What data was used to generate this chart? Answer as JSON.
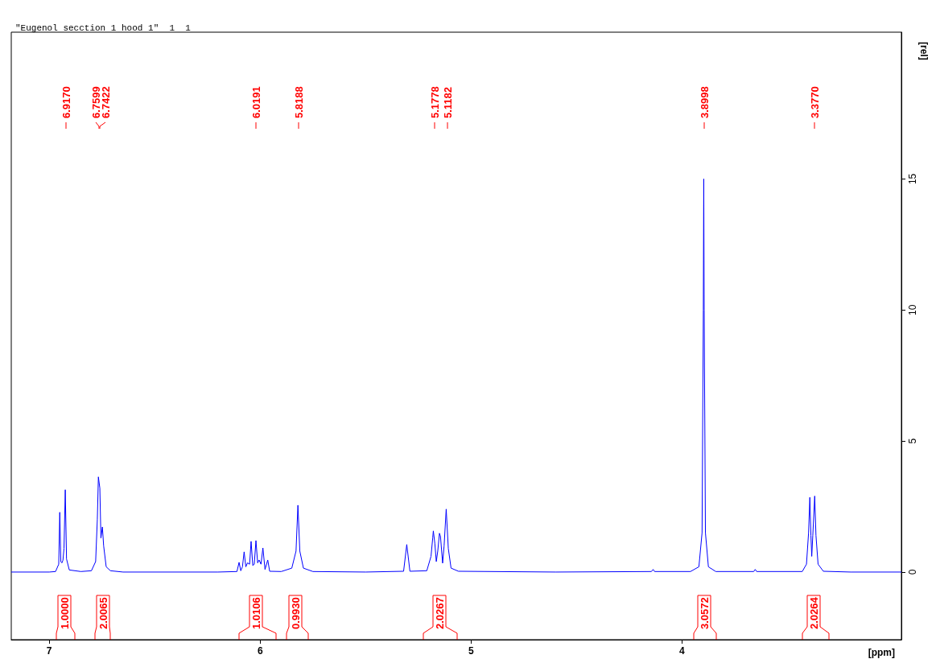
{
  "chart_data": {
    "type": "line",
    "title": "\"Eugenol secction 1 hood 1\"  1  1",
    "xlabel": "[ppm]",
    "ylabel": "[rel]",
    "xlim": [
      7.18,
      2.96
    ],
    "xticks": [
      7,
      6,
      5,
      4
    ],
    "ylim": [
      -2.58,
      20.6
    ],
    "yticks": [
      0,
      5,
      10,
      15
    ],
    "grid": false,
    "marker": "none",
    "line_style": "solid",
    "series": [
      {
        "color": "#0000ff",
        "x": [
          7.18,
          7.0,
          6.97,
          6.955,
          6.95,
          6.945,
          6.94,
          6.935,
          6.93,
          6.924,
          6.918,
          6.905,
          6.85,
          6.8,
          6.78,
          6.772,
          6.767,
          6.76,
          6.755,
          6.748,
          6.742,
          6.73,
          6.71,
          6.65,
          6.2,
          6.11,
          6.1,
          6.092,
          6.084,
          6.076,
          6.068,
          6.06,
          6.05,
          6.043,
          6.035,
          6.028,
          6.02,
          6.012,
          6.005,
          5.996,
          5.987,
          5.977,
          5.964,
          5.955,
          5.9,
          5.85,
          5.83,
          5.821,
          5.812,
          5.795,
          5.75,
          5.5,
          5.32,
          5.305,
          5.29,
          5.21,
          5.19,
          5.182,
          5.179,
          5.172,
          5.165,
          5.158,
          5.15,
          5.145,
          5.135,
          5.128,
          5.118,
          5.108,
          5.095,
          5.06,
          4.6,
          4.145,
          4.137,
          4.13,
          3.96,
          3.92,
          3.905,
          3.899,
          3.897,
          3.895,
          3.889,
          3.875,
          3.84,
          3.66,
          3.653,
          3.646,
          3.43,
          3.41,
          3.4,
          3.394,
          3.389,
          3.385,
          3.38,
          3.371,
          3.365,
          3.355,
          3.33,
          3.2,
          2.96
        ],
        "values": [
          0,
          0,
          0.02,
          0.3,
          2.28,
          0.4,
          0.35,
          0.45,
          0.9,
          3.14,
          0.5,
          0.08,
          0.02,
          0.05,
          0.4,
          2.0,
          3.63,
          3.2,
          1.3,
          1.72,
          1.0,
          0.2,
          0.05,
          0,
          0,
          0.02,
          0.37,
          0.05,
          0.2,
          0.77,
          0.2,
          0.35,
          0.3,
          1.17,
          0.25,
          0.3,
          1.2,
          0.35,
          0.46,
          0.3,
          0.92,
          0.1,
          0.46,
          0.03,
          0.02,
          0.15,
          0.8,
          2.55,
          0.8,
          0.15,
          0.02,
          0,
          0.03,
          1.05,
          0.03,
          0.05,
          0.6,
          1.3,
          1.57,
          1.1,
          0.4,
          0.8,
          1.48,
          1.35,
          0.34,
          1.0,
          2.4,
          0.9,
          0.15,
          0.03,
          0,
          0.02,
          0.1,
          0.02,
          0.02,
          0.2,
          1.5,
          10,
          15,
          10,
          1.5,
          0.2,
          0.02,
          0.02,
          0.1,
          0.02,
          0.02,
          0.3,
          1.5,
          2.85,
          1.4,
          0.6,
          1.4,
          2.9,
          1.4,
          0.3,
          0.03,
          0,
          0
        ]
      }
    ],
    "annotations": [
      "6.9170",
      "6.7599",
      "6.7422",
      "6.0191",
      "5.8188",
      "5.1778",
      "5.1182",
      "3.8998",
      "3.3770",
      "1.0000",
      "2.0065",
      "1.0106",
      "0.9930",
      "2.0267",
      "3.0572",
      "2.0264"
    ]
  }
}
